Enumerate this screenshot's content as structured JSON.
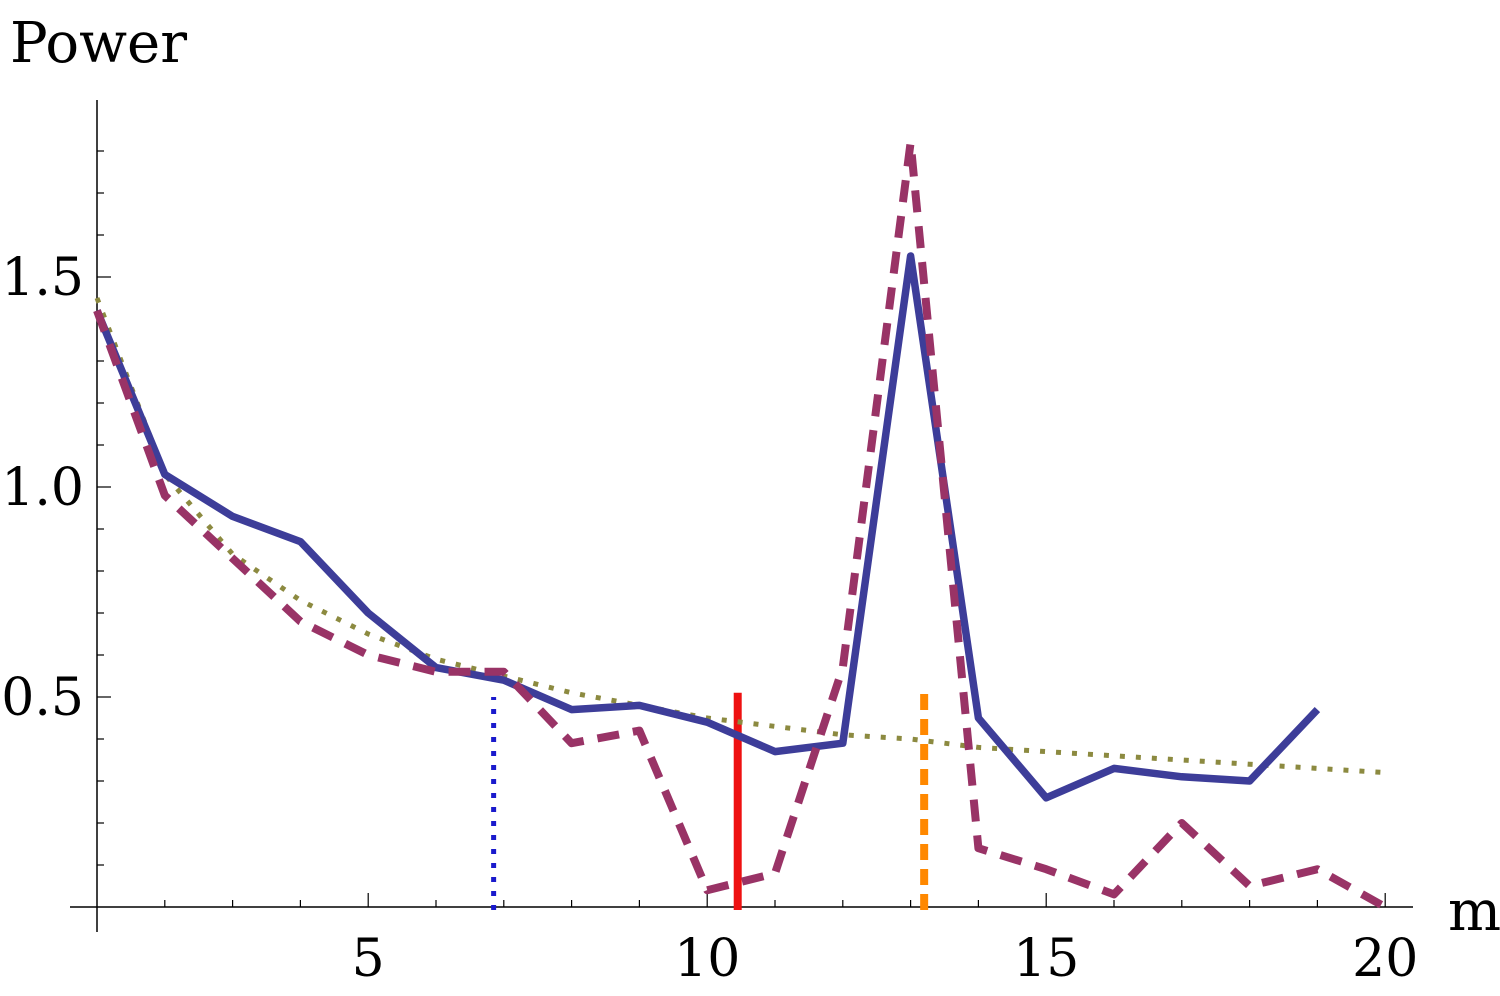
{
  "chart_data": {
    "type": "line",
    "xlabel": "m",
    "ylabel": "Power",
    "xlim": [
      0.1,
      20.2
    ],
    "ylim": [
      -0.07,
      1.9
    ],
    "x_ticks": [
      5,
      10,
      15,
      20
    ],
    "x_tick_labels": [
      "5",
      "10",
      "15",
      "20"
    ],
    "y_ticks": [
      0.5,
      1.0,
      1.5
    ],
    "y_tick_labels": [
      "0.5",
      "1.0",
      "1.5"
    ],
    "grid": false,
    "series": [
      {
        "style": "solid",
        "color": "#3d3d99",
        "x": [
          1,
          2,
          3,
          4,
          5,
          6,
          7,
          8,
          9,
          10,
          11,
          12,
          13,
          14,
          15,
          16,
          17,
          18,
          19
        ],
        "y": [
          1.42,
          1.03,
          0.93,
          0.87,
          0.7,
          0.57,
          0.54,
          0.47,
          0.48,
          0.44,
          0.37,
          0.39,
          1.55,
          0.45,
          0.26,
          0.33,
          0.31,
          0.3,
          0.47
        ]
      },
      {
        "style": "dashed",
        "color": "#993366",
        "x": [
          1,
          2,
          3,
          4,
          5,
          6,
          7,
          8,
          9,
          10,
          11,
          12,
          13,
          14,
          15,
          16,
          17,
          18,
          19,
          20
        ],
        "y": [
          1.42,
          0.98,
          0.83,
          0.68,
          0.6,
          0.56,
          0.56,
          0.39,
          0.42,
          0.04,
          0.08,
          0.57,
          1.82,
          0.14,
          0.09,
          0.03,
          0.2,
          0.05,
          0.09,
          0.0
        ]
      },
      {
        "style": "dotted",
        "color": "#8c8a40",
        "x": [
          1,
          2,
          3,
          4,
          5,
          6,
          7,
          8,
          9,
          10,
          11,
          12,
          13,
          14,
          15,
          16,
          17,
          18,
          19,
          20
        ],
        "y": [
          1.45,
          1.03,
          0.84,
          0.73,
          0.65,
          0.59,
          0.55,
          0.51,
          0.48,
          0.45,
          0.43,
          0.41,
          0.4,
          0.38,
          0.37,
          0.36,
          0.35,
          0.34,
          0.33,
          0.32
        ]
      }
    ],
    "vertical_lines": [
      {
        "x": 6.85,
        "y_top": 0.5,
        "style": "dotted",
        "color": "#1a1acc"
      },
      {
        "x": 10.45,
        "y_top": 0.51,
        "style": "solid",
        "color": "#ee1111"
      },
      {
        "x": 13.2,
        "y_top": 0.51,
        "style": "dashed",
        "color": "#ff8800"
      }
    ]
  }
}
